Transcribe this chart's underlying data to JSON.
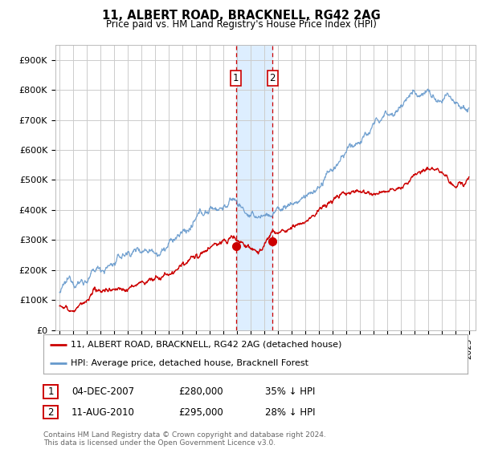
{
  "title": "11, ALBERT ROAD, BRACKNELL, RG42 2AG",
  "subtitle": "Price paid vs. HM Land Registry's House Price Index (HPI)",
  "ylabel_ticks": [
    "£0",
    "£100K",
    "£200K",
    "£300K",
    "£400K",
    "£500K",
    "£600K",
    "£700K",
    "£800K",
    "£900K"
  ],
  "ytick_values": [
    0,
    100000,
    200000,
    300000,
    400000,
    500000,
    600000,
    700000,
    800000,
    900000
  ],
  "ylim": [
    0,
    950000
  ],
  "xlim_start": 1994.7,
  "xlim_end": 2025.5,
  "sale1_x": 2007.92,
  "sale1_y": 280000,
  "sale2_x": 2010.61,
  "sale2_y": 295000,
  "sale1_label": "1",
  "sale2_label": "2",
  "sale1_date": "04-DEC-2007",
  "sale1_price": "£280,000",
  "sale1_hpi": "35% ↓ HPI",
  "sale2_date": "11-AUG-2010",
  "sale2_price": "£295,000",
  "sale2_hpi": "28% ↓ HPI",
  "legend_line1": "11, ALBERT ROAD, BRACKNELL, RG42 2AG (detached house)",
  "legend_line2": "HPI: Average price, detached house, Bracknell Forest",
  "footer": "Contains HM Land Registry data © Crown copyright and database right 2024.\nThis data is licensed under the Open Government Licence v3.0.",
  "line_color_red": "#cc0000",
  "line_color_blue": "#6699cc",
  "bg_color": "#ffffff",
  "grid_color": "#cccccc",
  "highlight_color": "#ddeeff"
}
